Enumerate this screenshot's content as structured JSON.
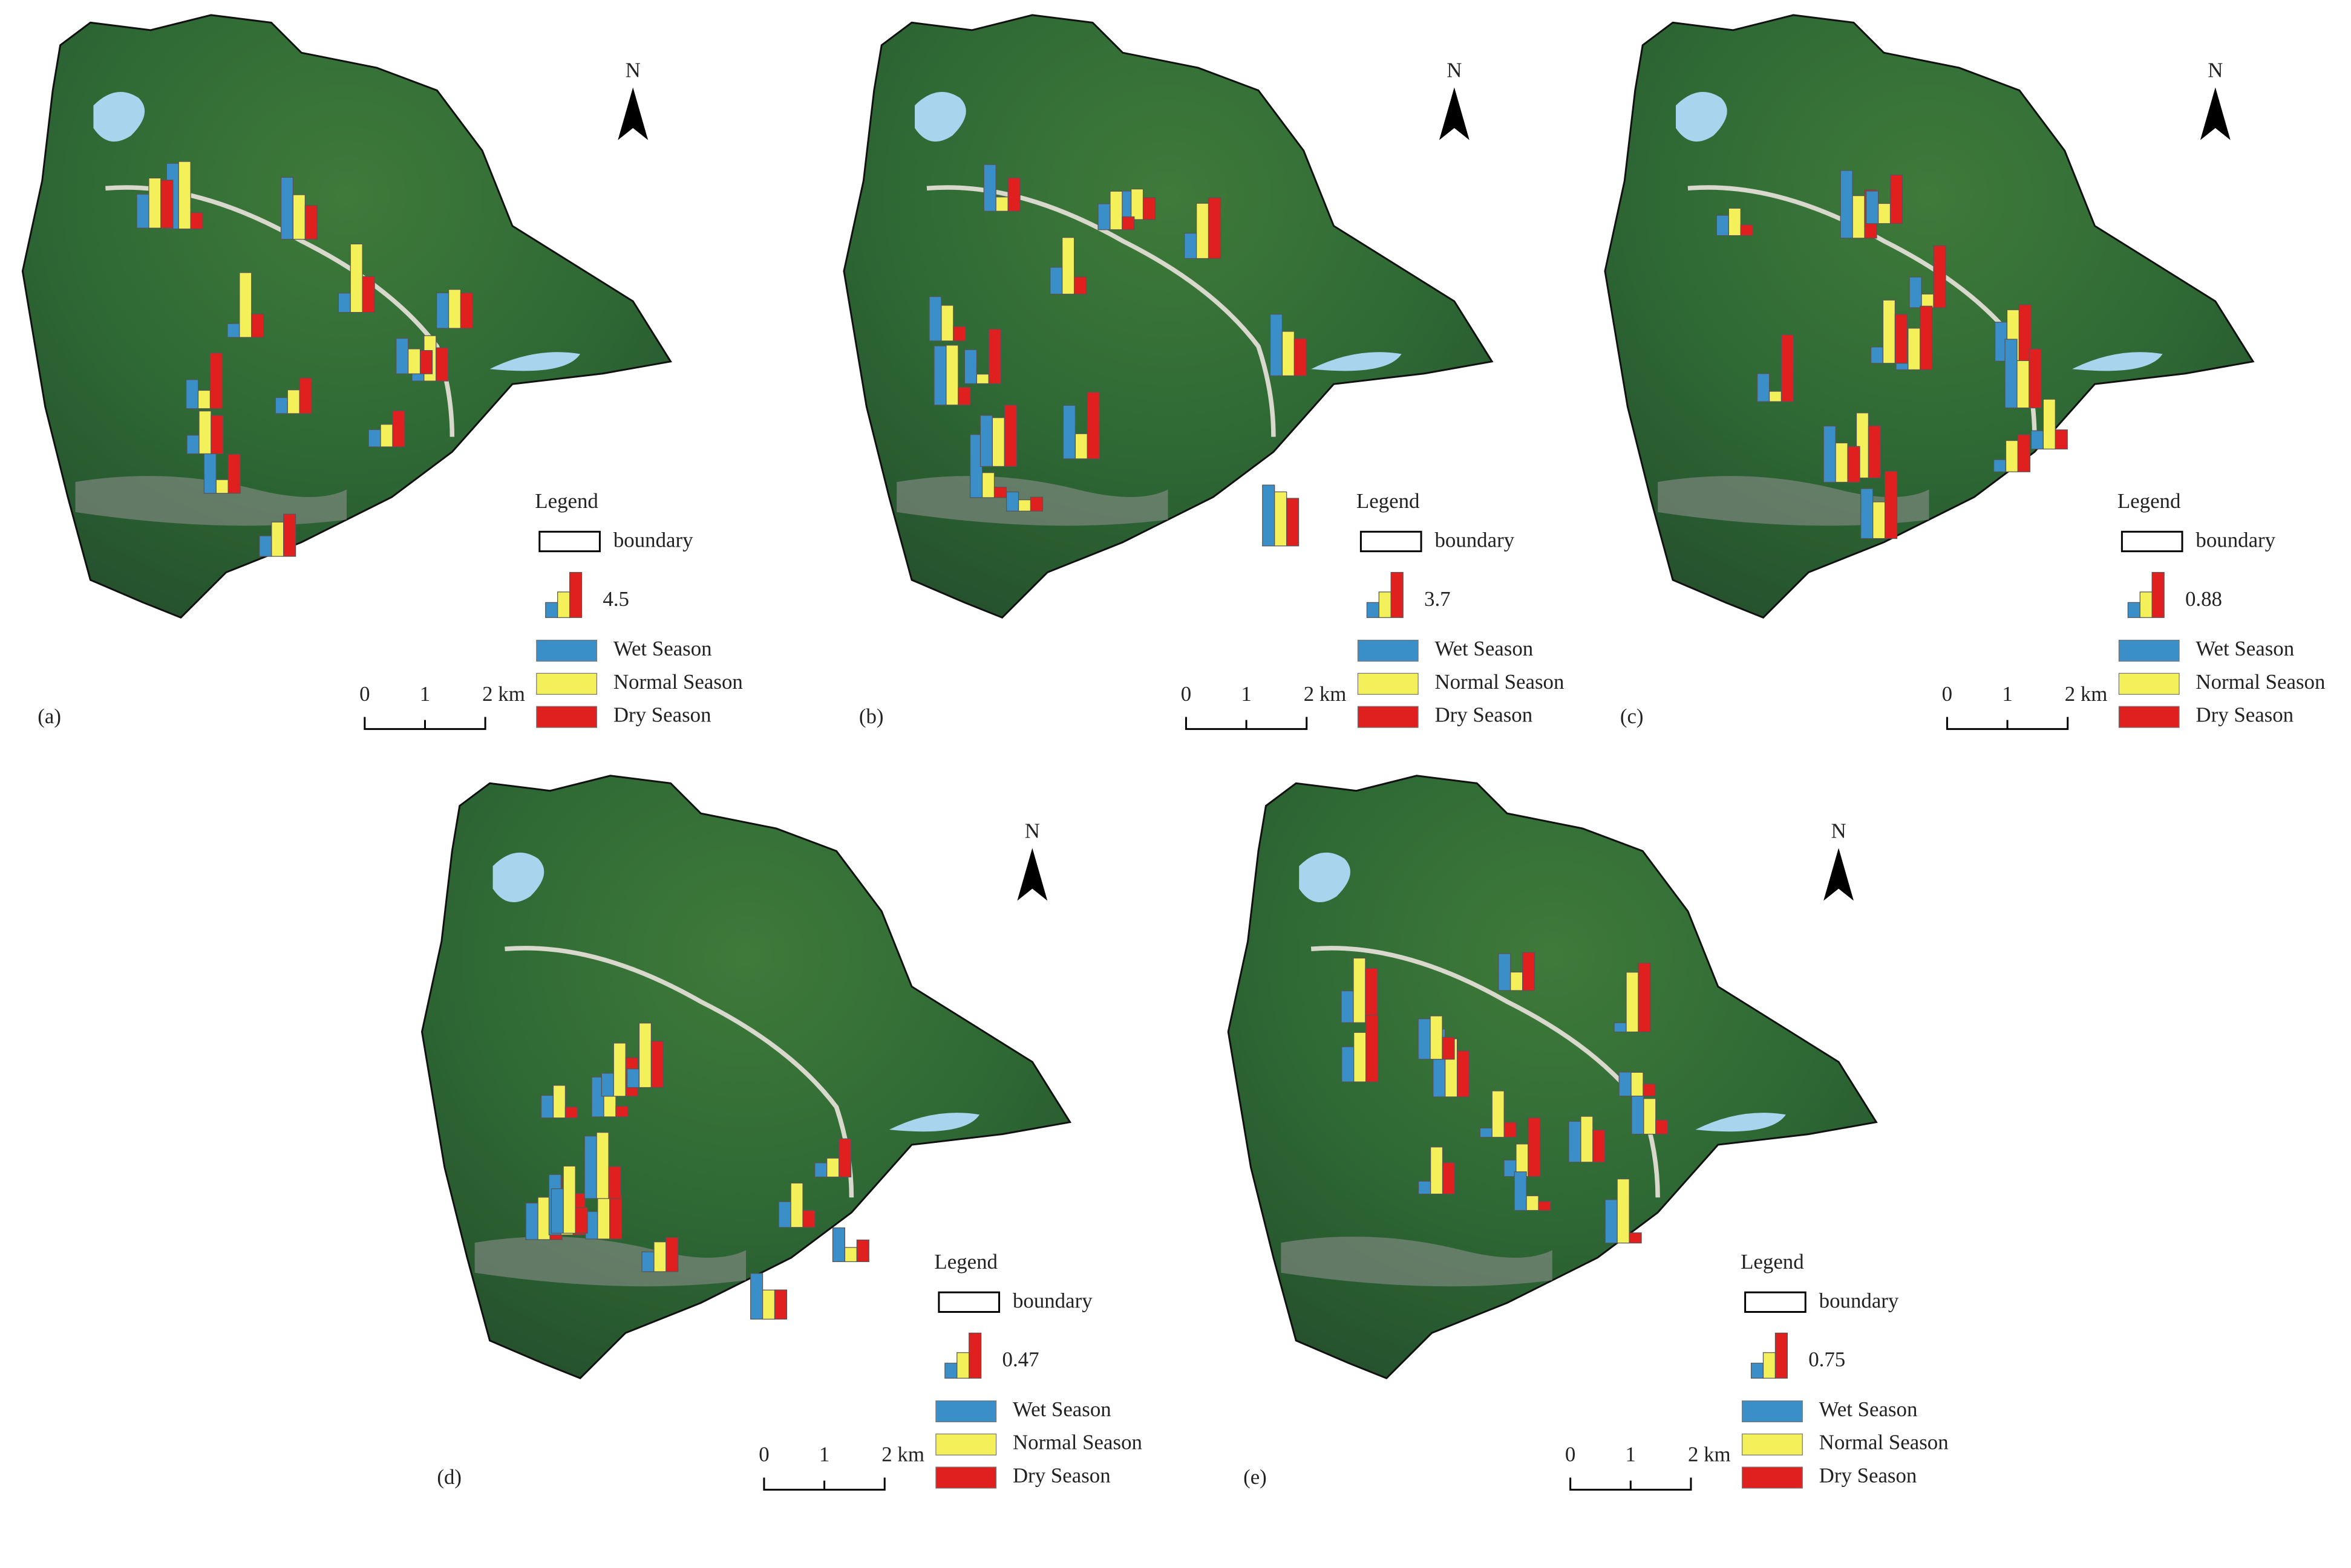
{
  "panels": [
    {
      "label": "(a)",
      "legend_title": "Legend",
      "boundary": "boundary",
      "legend_value": "4.5",
      "seasons": [
        "Wet Season",
        "Normal Season",
        "Dry Season"
      ],
      "scale": [
        "0",
        "1",
        "2 km"
      ],
      "north": "N"
    },
    {
      "label": "(b)",
      "legend_title": "Legend",
      "boundary": "boundary",
      "legend_value": "3.7",
      "seasons": [
        "Wet Season",
        "Normal Season",
        "Dry Season"
      ],
      "scale": [
        "0",
        "1",
        "2 km"
      ],
      "north": "N"
    },
    {
      "label": "(c)",
      "legend_title": "Legend",
      "boundary": "boundary",
      "legend_value": "0.88",
      "seasons": [
        "Wet Season",
        "Normal Season",
        "Dry Season"
      ],
      "scale": [
        "0",
        "1",
        "2 km"
      ],
      "north": "N"
    },
    {
      "label": "(d)",
      "legend_title": "Legend",
      "boundary": "boundary",
      "legend_value": "0.47",
      "seasons": [
        "Wet Season",
        "Normal Season",
        "Dry Season"
      ],
      "scale": [
        "0",
        "1",
        "2 km"
      ],
      "north": "N"
    },
    {
      "label": "(e)",
      "legend_title": "Legend",
      "boundary": "boundary",
      "legend_value": "0.75",
      "seasons": [
        "Wet Season",
        "Normal Season",
        "Dry Season"
      ],
      "scale": [
        "0",
        "1",
        "2 km"
      ],
      "north": "N"
    }
  ]
}
